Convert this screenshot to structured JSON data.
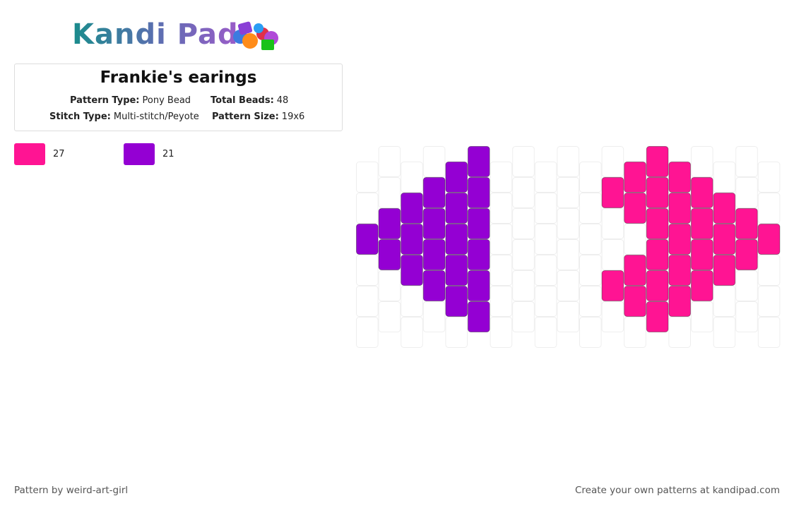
{
  "header": {
    "logo": "Kandi Pad"
  },
  "info": {
    "title": "Frankie's earings",
    "fields": [
      {
        "label": "Pattern Type:",
        "value": "Pony Bead"
      },
      {
        "label": "Total Beads:",
        "value": 48
      },
      {
        "label": "Stitch Type:",
        "value": "Multi-stitch/Peyote"
      },
      {
        "label": "Pattern Size:",
        "value": "19x6"
      }
    ]
  },
  "legend": [
    {
      "color": "#ff1493",
      "count": 27
    },
    {
      "color": "#9400d3",
      "count": 21
    }
  ],
  "pattern": [
    "--1---",
    "--11--",
    "-111--",
    "-1111-",
    "11111-",
    "111111",
    "------",
    "------",
    "------",
    "------",
    "------",
    "-0--0-",
    "00-00-",
    "000000",
    "00000-",
    "-0000-",
    "-000--",
    "--00--",
    "--0---"
  ],
  "footer": {
    "left": "Pattern by weird-art-girl",
    "right": "Create your own patterns at kandipad.com"
  }
}
